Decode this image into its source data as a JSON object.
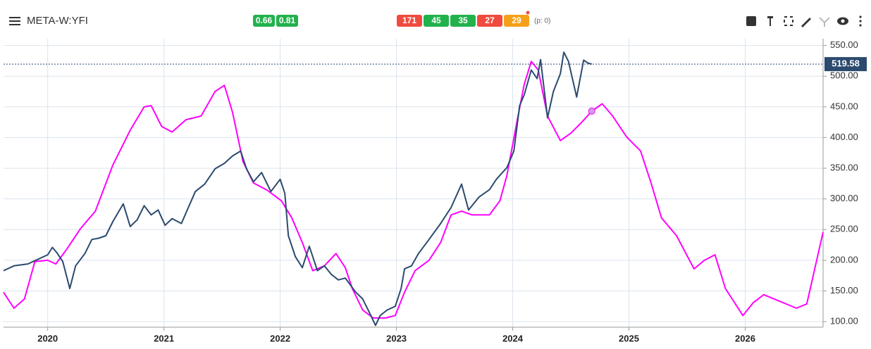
{
  "toolbar": {
    "symbol": "META-W:YFI",
    "green_badges": [
      "0.66",
      "0.81"
    ],
    "count_badges": [
      {
        "text": "171",
        "color": "#ef4b3f"
      },
      {
        "text": "45",
        "color": "#22b24c"
      },
      {
        "text": "35",
        "color": "#22b24c"
      },
      {
        "text": "27",
        "color": "#ef4b3f"
      },
      {
        "text": "29",
        "color": "#f5a019"
      }
    ],
    "p_label": "(p: 0)"
  },
  "chart_data": {
    "type": "line",
    "xlim": [
      2019.62,
      2026.67
    ],
    "xticks": [
      2020,
      2021,
      2022,
      2023,
      2024,
      2025,
      2026
    ],
    "ylim": [
      91,
      561
    ],
    "yticks": [
      {
        "value": 100,
        "label": "100.00"
      },
      {
        "value": 150,
        "label": "150.00"
      },
      {
        "value": 200,
        "label": "200.00"
      },
      {
        "value": 250,
        "label": "250.00"
      },
      {
        "value": 300,
        "label": "300.00"
      },
      {
        "value": 350,
        "label": "350.00"
      },
      {
        "value": 400,
        "label": "400.00"
      },
      {
        "value": 450,
        "label": "450.00"
      },
      {
        "value": 500,
        "label": "500.00"
      },
      {
        "value": 550,
        "label": "550.00"
      }
    ],
    "grid": true,
    "series": [
      {
        "color": "#2b4a6e",
        "x": [
          2019.62,
          2019.71,
          2019.83,
          2019.92,
          2020.0,
          2020.04,
          2020.08,
          2020.13,
          2020.19,
          2020.24,
          2020.32,
          2020.38,
          2020.44,
          2020.5,
          2020.56,
          2020.65,
          2020.71,
          2020.77,
          2020.83,
          2020.89,
          2020.95,
          2021.01,
          2021.07,
          2021.15,
          2021.21,
          2021.27,
          2021.35,
          2021.44,
          2021.52,
          2021.59,
          2021.66,
          2021.71,
          2021.77,
          2021.84,
          2021.92,
          2022.0,
          2022.04,
          2022.07,
          2022.13,
          2022.19,
          2022.25,
          2022.32,
          2022.38,
          2022.44,
          2022.5,
          2022.56,
          2022.65,
          2022.71,
          2022.77,
          2022.82,
          2022.86,
          2022.92,
          2022.99,
          2023.04,
          2023.07,
          2023.13,
          2023.19,
          2023.28,
          2023.38,
          2023.47,
          2023.56,
          2023.62,
          2023.71,
          2023.8,
          2023.86,
          2023.95,
          2024.01,
          2024.06,
          2024.1,
          2024.16,
          2024.21,
          2024.24,
          2024.3,
          2024.35,
          2024.41,
          2024.44,
          2024.48,
          2024.55,
          2024.61,
          2024.65,
          2024.68
        ],
        "values": [
          183,
          191,
          194,
          202,
          209,
          221,
          212,
          198,
          154,
          191,
          211,
          234,
          236,
          240,
          263,
          292,
          255,
          266,
          289,
          274,
          282,
          257,
          268,
          260,
          286,
          312,
          324,
          349,
          358,
          370,
          378,
          349,
          328,
          343,
          312,
          332,
          309,
          240,
          206,
          188,
          223,
          183,
          191,
          177,
          168,
          171,
          148,
          137,
          114,
          94,
          110,
          119,
          125,
          154,
          186,
          191,
          211,
          234,
          260,
          286,
          324,
          282,
          303,
          315,
          332,
          351,
          378,
          452,
          470,
          510,
          496,
          527,
          432,
          475,
          504,
          539,
          524,
          466,
          526,
          521,
          519.58
        ]
      },
      {
        "color": "#ff00ff",
        "x": [
          2019.62,
          2019.71,
          2019.8,
          2019.89,
          2020.0,
          2020.07,
          2020.16,
          2020.28,
          2020.41,
          2020.56,
          2020.71,
          2020.83,
          2020.89,
          2020.98,
          2021.07,
          2021.19,
          2021.32,
          2021.44,
          2021.52,
          2021.59,
          2021.68,
          2021.77,
          2021.89,
          2022.01,
          2022.1,
          2022.19,
          2022.28,
          2022.38,
          2022.48,
          2022.56,
          2022.62,
          2022.71,
          2022.8,
          2022.91,
          2022.99,
          2023.07,
          2023.16,
          2023.28,
          2023.38,
          2023.47,
          2023.56,
          2023.65,
          2023.8,
          2023.89,
          2023.95,
          2024.04,
          2024.1,
          2024.16,
          2024.22,
          2024.3,
          2024.41,
          2024.5,
          2024.59,
          2024.68,
          2024.77,
          2024.86,
          2024.98,
          2025.1,
          2025.19,
          2025.28,
          2025.41,
          2025.56,
          2025.65,
          2025.74,
          2025.83,
          2025.98,
          2026.07,
          2026.16,
          2026.25,
          2026.44,
          2026.53,
          2026.67
        ],
        "values": [
          148,
          122,
          137,
          198,
          200,
          194,
          217,
          251,
          280,
          355,
          412,
          450,
          452,
          418,
          409,
          429,
          435,
          475,
          485,
          441,
          361,
          326,
          314,
          297,
          269,
          229,
          183,
          191,
          211,
          188,
          154,
          119,
          106,
          106,
          110,
          148,
          183,
          200,
          229,
          274,
          280,
          274,
          274,
          297,
          338,
          429,
          487,
          524,
          510,
          435,
          395,
          407,
          424,
          443,
          455,
          435,
          401,
          378,
          326,
          269,
          240,
          186,
          200,
          209,
          154,
          110,
          131,
          144,
          137,
          122,
          129,
          246
        ]
      }
    ],
    "marker": {
      "x": 2024.68,
      "y": 443
    }
  }
}
